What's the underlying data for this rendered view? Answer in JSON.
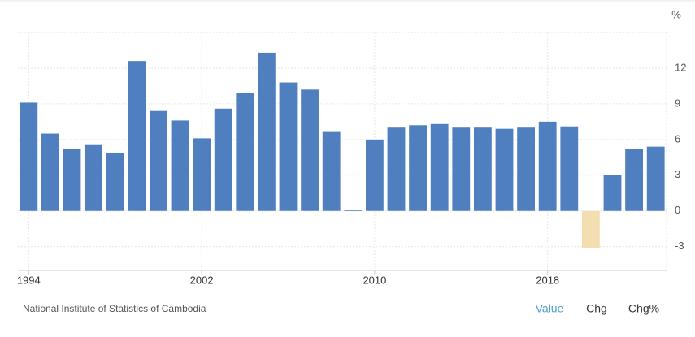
{
  "chart_data": {
    "type": "bar",
    "y_label": "%",
    "x": [
      1994,
      1995,
      1996,
      1997,
      1998,
      1999,
      2000,
      2001,
      2002,
      2003,
      2004,
      2005,
      2006,
      2007,
      2008,
      2009,
      2010,
      2011,
      2012,
      2013,
      2014,
      2015,
      2016,
      2017,
      2018,
      2019,
      2020,
      2021,
      2022,
      2023
    ],
    "values": [
      9.1,
      6.5,
      5.2,
      5.6,
      4.9,
      12.6,
      8.4,
      7.6,
      6.1,
      8.6,
      9.9,
      13.3,
      10.8,
      10.2,
      6.7,
      0.1,
      6.0,
      7.0,
      7.2,
      7.3,
      7.0,
      7.0,
      6.9,
      7.0,
      7.5,
      7.1,
      -3.1,
      3.0,
      5.2,
      5.4
    ],
    "color": "#4f7fbf",
    "negative_color": "#f3deb1",
    "xlim": [
      1993.5,
      2023.5
    ],
    "xticks": [
      1994,
      2002,
      2010,
      2018
    ],
    "ylim": [
      -5,
      15
    ],
    "yticks": [
      -3,
      0,
      3,
      6,
      9,
      12
    ],
    "grid": true
  },
  "source": "National Institute of Statistics of Cambodia",
  "buttons": [
    "Value",
    "Chg",
    "Chg%"
  ]
}
